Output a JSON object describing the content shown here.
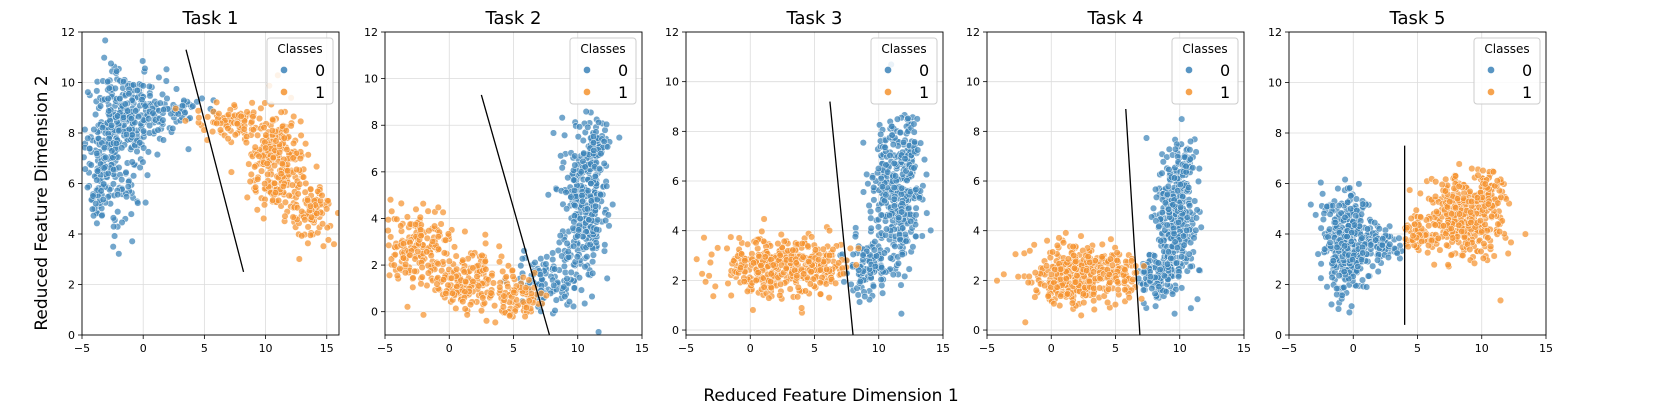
{
  "figure": {
    "xlabel": "Reduced Feature Dimension 1",
    "ylabel": "Reduced Feature Dimension 2"
  },
  "colors": {
    "class_0": "#3b83b8",
    "class_1": "#f5932f",
    "boundary": "#000000",
    "grid": "#dcdcdc"
  },
  "legend": {
    "title": "Classes",
    "entries": [
      "0",
      "1"
    ]
  },
  "chart_data": [
    {
      "type": "scatter",
      "title": "Task 1",
      "xlim": [
        -5,
        16
      ],
      "ylim": [
        0,
        12
      ],
      "xticks": [
        -5,
        0,
        5,
        10,
        15
      ],
      "yticks": [
        0,
        2,
        4,
        6,
        8,
        10,
        12
      ],
      "grid": true,
      "legend_position": "top-right",
      "boundary": [
        [
          3.5,
          11.3
        ],
        [
          8.2,
          2.5
        ]
      ],
      "series": [
        {
          "name": "0",
          "clusters": [
            {
              "cx": -2.5,
              "cy": 7.5,
              "sx": 1.1,
              "sy": 1.4,
              "n": 260
            },
            {
              "cx": -0.5,
              "cy": 8.8,
              "sx": 1.4,
              "sy": 0.8,
              "n": 160
            },
            {
              "cx": 2.5,
              "cy": 8.9,
              "sx": 1.2,
              "sy": 0.35,
              "n": 50
            },
            {
              "cx": -3.7,
              "cy": 5.6,
              "sx": 0.4,
              "sy": 0.6,
              "n": 30
            }
          ]
        },
        {
          "name": "1",
          "clusters": [
            {
              "cx": 7.0,
              "cy": 8.5,
              "sx": 1.5,
              "sy": 0.35,
              "n": 80
            },
            {
              "cx": 11.0,
              "cy": 6.8,
              "sx": 1.2,
              "sy": 1.1,
              "n": 240
            },
            {
              "cx": 13.8,
              "cy": 4.8,
              "sx": 0.8,
              "sy": 0.6,
              "n": 90
            }
          ]
        }
      ]
    },
    {
      "type": "scatter",
      "title": "Task 2",
      "xlim": [
        -5,
        15
      ],
      "ylim": [
        -1,
        12
      ],
      "xticks": [
        -5,
        0,
        5,
        10,
        15
      ],
      "yticks": [
        0,
        2,
        4,
        6,
        8,
        10,
        12
      ],
      "grid": true,
      "legend_position": "top-right",
      "boundary": [
        [
          2.5,
          9.3
        ],
        [
          7.8,
          -1.0
        ]
      ],
      "series": [
        {
          "name": "0",
          "clusters": [
            {
              "cx": 10.5,
              "cy": 4.8,
              "sx": 0.9,
              "sy": 1.6,
              "n": 330
            },
            {
              "cx": 7.8,
              "cy": 1.3,
              "sx": 1.4,
              "sy": 0.6,
              "n": 110
            },
            {
              "cx": 11.6,
              "cy": 7.2,
              "sx": 0.4,
              "sy": 0.6,
              "n": 40
            }
          ]
        },
        {
          "name": "1",
          "clusters": [
            {
              "cx": -2.5,
              "cy": 2.8,
              "sx": 1.4,
              "sy": 0.8,
              "n": 170
            },
            {
              "cx": 1.5,
              "cy": 1.3,
              "sx": 1.5,
              "sy": 0.6,
              "n": 180
            },
            {
              "cx": 5.5,
              "cy": 0.6,
              "sx": 0.9,
              "sy": 0.4,
              "n": 70
            }
          ]
        }
      ]
    },
    {
      "type": "scatter",
      "title": "Task 3",
      "xlim": [
        -5,
        15
      ],
      "ylim": [
        -0.2,
        12
      ],
      "xticks": [
        -5,
        0,
        5,
        10,
        15
      ],
      "yticks": [
        0,
        2,
        4,
        6,
        8,
        10,
        12
      ],
      "grid": true,
      "legend_position": "top-right",
      "boundary": [
        [
          6.2,
          9.2
        ],
        [
          8.0,
          -0.2
        ]
      ],
      "series": [
        {
          "name": "0",
          "clusters": [
            {
              "cx": 11.5,
              "cy": 5.5,
              "sx": 1.0,
              "sy": 1.5,
              "n": 340
            },
            {
              "cx": 9.2,
              "cy": 2.6,
              "sx": 0.8,
              "sy": 0.6,
              "n": 110
            },
            {
              "cx": 12.3,
              "cy": 7.4,
              "sx": 0.4,
              "sy": 0.5,
              "n": 40
            }
          ]
        },
        {
          "name": "1",
          "clusters": [
            {
              "cx": 1.5,
              "cy": 2.5,
              "sx": 2.0,
              "sy": 0.6,
              "n": 300
            },
            {
              "cx": 5.5,
              "cy": 2.6,
              "sx": 1.2,
              "sy": 0.5,
              "n": 100
            }
          ]
        }
      ]
    },
    {
      "type": "scatter",
      "title": "Task 4",
      "xlim": [
        -5,
        15
      ],
      "ylim": [
        -0.2,
        12
      ],
      "xticks": [
        -5,
        0,
        5,
        10,
        15
      ],
      "yticks": [
        0,
        2,
        4,
        6,
        8,
        10,
        12
      ],
      "grid": true,
      "legend_position": "top-right",
      "boundary": [
        [
          5.8,
          8.9
        ],
        [
          6.9,
          -0.2
        ]
      ],
      "series": [
        {
          "name": "0",
          "clusters": [
            {
              "cx": 9.7,
              "cy": 4.5,
              "sx": 0.8,
              "sy": 1.5,
              "n": 340
            },
            {
              "cx": 7.9,
              "cy": 2.0,
              "sx": 0.6,
              "sy": 0.5,
              "n": 90
            },
            {
              "cx": 10.6,
              "cy": 6.8,
              "sx": 0.4,
              "sy": 0.5,
              "n": 40
            }
          ]
        },
        {
          "name": "1",
          "clusters": [
            {
              "cx": 1.5,
              "cy": 2.2,
              "sx": 1.8,
              "sy": 0.6,
              "n": 320
            },
            {
              "cx": 5.0,
              "cy": 2.3,
              "sx": 1.0,
              "sy": 0.5,
              "n": 80
            }
          ]
        }
      ]
    },
    {
      "type": "scatter",
      "title": "Task 5",
      "xlim": [
        -5,
        15
      ],
      "ylim": [
        0,
        12
      ],
      "xticks": [
        -5,
        0,
        5,
        10,
        15
      ],
      "yticks": [
        0,
        2,
        4,
        6,
        8,
        10,
        12
      ],
      "grid": true,
      "legend_position": "top-right",
      "boundary": [
        [
          4.0,
          7.5
        ],
        [
          4.0,
          0.4
        ]
      ],
      "series": [
        {
          "name": "0",
          "clusters": [
            {
              "cx": -0.5,
              "cy": 3.7,
              "sx": 0.9,
              "sy": 1.0,
              "n": 380
            },
            {
              "cx": 2.2,
              "cy": 3.6,
              "sx": 0.8,
              "sy": 0.35,
              "n": 70
            }
          ]
        },
        {
          "name": "1",
          "clusters": [
            {
              "cx": 8.5,
              "cy": 4.7,
              "sx": 1.6,
              "sy": 0.8,
              "n": 360
            },
            {
              "cx": 5.0,
              "cy": 4.0,
              "sx": 0.6,
              "sy": 0.35,
              "n": 60
            },
            {
              "cx": 10.5,
              "cy": 5.8,
              "sx": 0.6,
              "sy": 0.4,
              "n": 50
            }
          ]
        }
      ]
    }
  ]
}
